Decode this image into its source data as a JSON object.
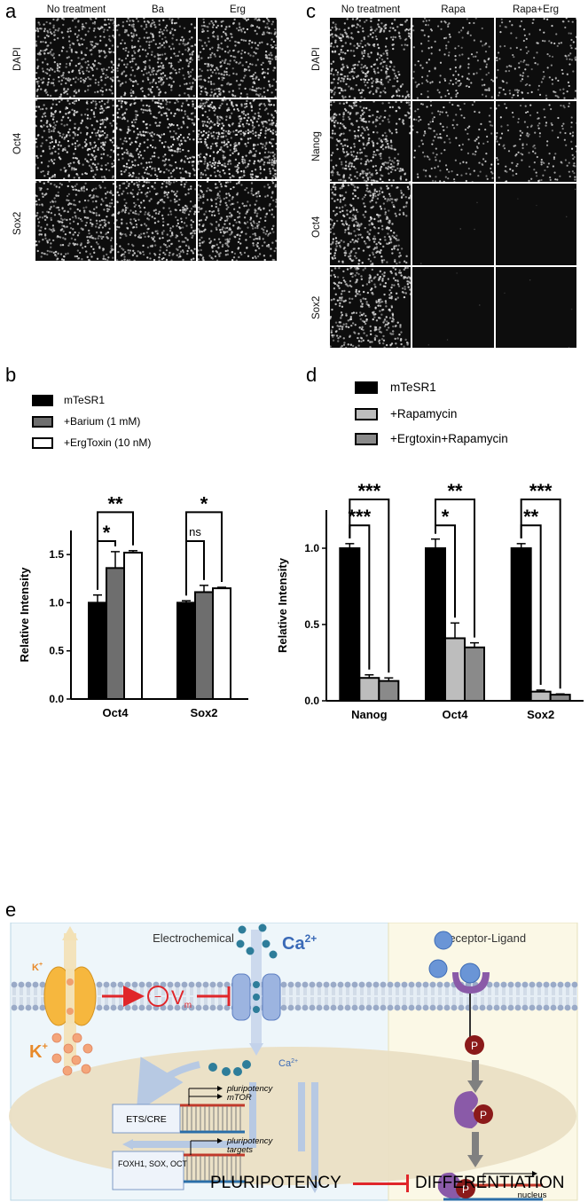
{
  "panels": {
    "a": "a",
    "b": "b",
    "c": "c",
    "d": "d",
    "e": "e"
  },
  "panel_a": {
    "columns": [
      "No treatment",
      "Ba",
      "Erg"
    ],
    "rows": [
      "DAPI",
      "Oct4",
      "Sox2"
    ]
  },
  "panel_c": {
    "columns": [
      "No treatment",
      "Rapa",
      "Rapa+Erg"
    ],
    "rows": [
      "DAPI",
      "Nanog",
      "Oct4",
      "Sox2"
    ]
  },
  "chart_data": [
    {
      "panel": "b",
      "type": "bar",
      "categories": [
        "Oct4",
        "Sox2"
      ],
      "series": [
        {
          "name": "mTeSR1",
          "values": [
            1.0,
            1.0
          ],
          "errors": [
            0.08,
            0.02
          ],
          "color": "#000000"
        },
        {
          "name": "+Barium (1 mM)",
          "values": [
            1.36,
            1.11
          ],
          "errors": [
            0.17,
            0.07
          ],
          "color": "#6e6e6e"
        },
        {
          "name": "+ErgToxin (10 nM)",
          "values": [
            1.52,
            1.15
          ],
          "errors": [
            0.02,
            0.01
          ],
          "color": "#ffffff"
        }
      ],
      "ylabel": "Relative Intensity",
      "ylim": [
        0,
        1.75
      ],
      "yticks": [
        "0.0",
        "0.5",
        "1.0",
        "1.5"
      ],
      "significance": [
        {
          "category": "Oct4",
          "pair": "mTeSR1 vs +Barium (1 mM)",
          "label": "*"
        },
        {
          "category": "Oct4",
          "pair": "mTeSR1 vs +ErgToxin (10 nM)",
          "label": "**"
        },
        {
          "category": "Sox2",
          "pair": "mTeSR1 vs +Barium (1 mM)",
          "label": "ns"
        },
        {
          "category": "Sox2",
          "pair": "mTeSR1 vs +ErgToxin (10 nM)",
          "label": "*"
        }
      ]
    },
    {
      "panel": "d",
      "type": "bar",
      "categories": [
        "Nanog",
        "Oct4",
        "Sox2"
      ],
      "series": [
        {
          "name": "mTeSR1",
          "values": [
            1.0,
            1.0,
            1.0
          ],
          "errors": [
            0.03,
            0.06,
            0.03
          ],
          "color": "#000000"
        },
        {
          "name": "+Rapamycin",
          "values": [
            0.15,
            0.41,
            0.06
          ],
          "errors": [
            0.02,
            0.1,
            0.01
          ],
          "color": "#bdbdbd"
        },
        {
          "name": "+Ergtoxin+Rapamycin",
          "values": [
            0.13,
            0.35,
            0.04
          ],
          "errors": [
            0.02,
            0.03,
            0.005
          ],
          "color": "#8a8a8a"
        }
      ],
      "ylabel": "Relative Intensity",
      "ylim": [
        0,
        1.25
      ],
      "yticks": [
        "0.0",
        "0.5",
        "1.0"
      ],
      "significance": [
        {
          "category": "Nanog",
          "pair": "mTeSR1 vs +Rapamycin",
          "label": "***"
        },
        {
          "category": "Nanog",
          "pair": "mTeSR1 vs +Ergtoxin+Rapamycin",
          "label": "***"
        },
        {
          "category": "Oct4",
          "pair": "mTeSR1 vs +Rapamycin",
          "label": "*"
        },
        {
          "category": "Oct4",
          "pair": "mTeSR1 vs +Ergtoxin+Rapamycin",
          "label": "**"
        },
        {
          "category": "Sox2",
          "pair": "mTeSR1 vs +Rapamycin",
          "label": "**"
        },
        {
          "category": "Sox2",
          "pair": "mTeSR1 vs +Ergtoxin+Rapamycin",
          "label": "***"
        }
      ]
    }
  ],
  "panel_e": {
    "left_title": "Electrochemical",
    "right_title": "Receptor-Ligand",
    "k_top": "K",
    "k_bottom": "K",
    "plus": "+",
    "ca_top": "Ca",
    "ca_bottom": "Ca",
    "two_plus": "2+",
    "vm_minus": "−",
    "vm": "V",
    "vm_sub": "m",
    "box1": "ETS/CRE",
    "box2": "FOXH1, SOX, OCT",
    "gene1a": "pluripotency",
    "gene1b": "mTOR",
    "gene2a": "pluripotency",
    "gene2b": "targets",
    "phospho": "P",
    "nucleus": "nucleus",
    "outcome_left": "PLURIPOTENCY",
    "outcome_right": "DIFFERENTIATION"
  }
}
